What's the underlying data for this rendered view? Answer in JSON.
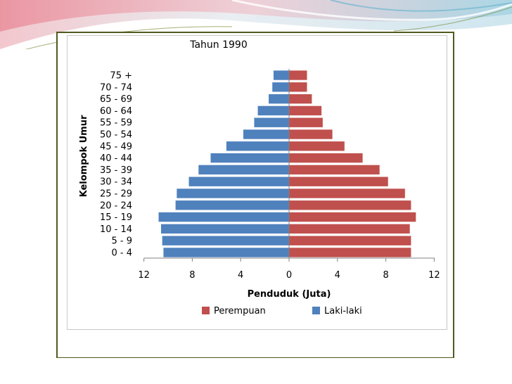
{
  "colors": {
    "female": "#c0504d",
    "male": "#4f81bd",
    "frame": "#4f5a1e",
    "gridline": "#d9d9d9"
  },
  "chart_data": {
    "type": "bar",
    "orientation": "horizontal",
    "subtype": "population-pyramid",
    "title": "Tahun 1990",
    "xlabel": "Penduduk (Juta)",
    "ylabel": "Kelompok Umur",
    "xlim": [
      -12,
      12
    ],
    "xticks": [
      -12,
      -8,
      -4,
      0,
      4,
      8,
      12
    ],
    "xtick_labels": [
      "12",
      "8",
      "4",
      "0",
      "4",
      "8",
      "12"
    ],
    "categories": [
      "0 - 4",
      "5 - 9",
      "10 - 14",
      "15 - 19",
      "20 - 24",
      "25 - 29",
      "30 - 34",
      "35 - 39",
      "40 - 44",
      "45 - 49",
      "50 - 54",
      "55 - 59",
      "60 - 64",
      "65 - 69",
      "70 - 74",
      "75 +"
    ],
    "series": [
      {
        "name": "Perempuan",
        "side": "right",
        "values": [
          10.1,
          10.1,
          10.0,
          10.5,
          10.1,
          9.6,
          8.2,
          7.5,
          6.1,
          4.6,
          3.6,
          2.8,
          2.7,
          1.9,
          1.5,
          1.5
        ]
      },
      {
        "name": "Laki-laki",
        "side": "left",
        "values": [
          10.4,
          10.5,
          10.6,
          10.8,
          9.4,
          9.3,
          8.3,
          7.5,
          6.5,
          5.2,
          3.8,
          2.9,
          2.6,
          1.7,
          1.4,
          1.3
        ]
      }
    ],
    "legend": {
      "position": "bottom",
      "entries": [
        "Perempuan",
        "Laki-laki"
      ]
    },
    "grid": false
  }
}
